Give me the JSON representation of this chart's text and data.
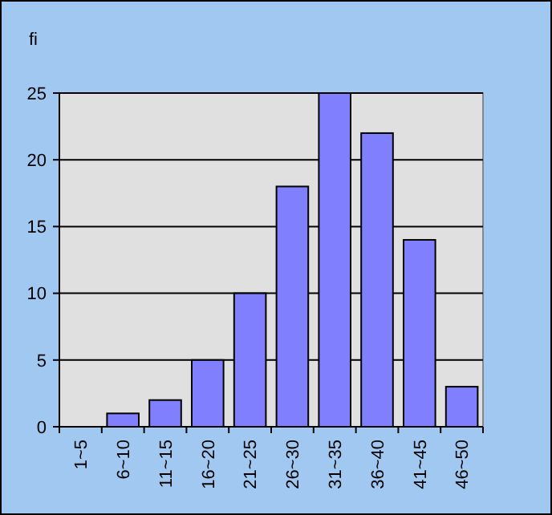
{
  "chart_data": {
    "type": "bar",
    "ylabel": "fi",
    "categories": [
      "1~5",
      "6~10",
      "11~15",
      "16~20",
      "21~25",
      "26~30",
      "31~35",
      "36~40",
      "41~45",
      "46~50"
    ],
    "values": [
      0,
      1,
      2,
      5,
      10,
      18,
      25,
      22,
      14,
      3
    ],
    "color": "#8080ff",
    "ylim": [
      0,
      25
    ],
    "yticks": [
      0,
      5,
      10,
      15,
      20,
      25
    ],
    "grid": "y"
  }
}
